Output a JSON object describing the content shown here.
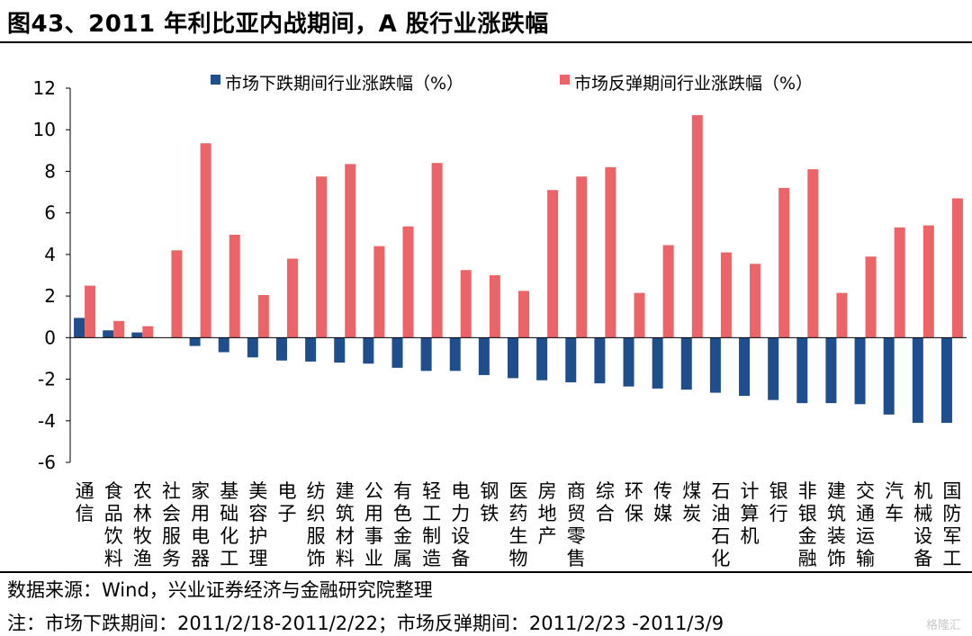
{
  "header": {
    "title": "图43、2011 年利比亚内战期间，A 股行业涨跌幅"
  },
  "footer": {
    "source": "数据来源：Wind，兴业证券经济与金融研究院整理",
    "note": "注：市场下跌期间：2011/2/18-2011/2/22；市场反弹期间：2011/2/23 -2011/3/9"
  },
  "watermark": "格隆汇",
  "colors": {
    "decline": "#1f4e8c",
    "rebound": "#ec6468",
    "axis": "#000000"
  },
  "chart_data": {
    "type": "bar",
    "ylim": [
      -6,
      12
    ],
    "yticks": [
      -6,
      -4,
      -2,
      0,
      2,
      4,
      6,
      8,
      10,
      12
    ],
    "grid": false,
    "legend_position": "top",
    "categories": [
      "通信",
      "食品饮料",
      "农林牧渔",
      "社会服务",
      "家用电器",
      "基础化工",
      "美容护理",
      "电子",
      "纺织服饰",
      "建筑材料",
      "公用事业",
      "有色金属",
      "轻工制造",
      "电力设备",
      "钢铁",
      "医药生物",
      "房地产",
      "商贸零售",
      "综合",
      "环保",
      "传媒",
      "煤炭",
      "石油石化",
      "计算机",
      "银行",
      "非银金融",
      "建筑装饰",
      "交通运输",
      "汽车",
      "机械设备",
      "国防军工"
    ],
    "series": [
      {
        "name": "市场下跌期间行业涨跌幅（%）",
        "values": [
          0.95,
          0.35,
          0.25,
          0.0,
          -0.4,
          -0.7,
          -0.95,
          -1.1,
          -1.15,
          -1.2,
          -1.25,
          -1.45,
          -1.6,
          -1.6,
          -1.8,
          -1.95,
          -2.05,
          -2.15,
          -2.2,
          -2.35,
          -2.45,
          -2.5,
          -2.65,
          -2.8,
          -3.0,
          -3.15,
          -3.15,
          -3.2,
          -3.7,
          -4.1,
          -4.1
        ]
      },
      {
        "name": "市场反弹期间行业涨跌幅（%）",
        "values": [
          2.5,
          0.8,
          0.55,
          4.2,
          9.35,
          4.95,
          2.05,
          3.8,
          7.75,
          8.35,
          4.4,
          5.35,
          8.4,
          3.25,
          3.0,
          2.25,
          7.1,
          7.75,
          8.2,
          2.15,
          4.45,
          10.7,
          4.1,
          3.55,
          7.2,
          8.1,
          2.15,
          3.9,
          5.3,
          5.4,
          6.7
        ]
      }
    ]
  }
}
